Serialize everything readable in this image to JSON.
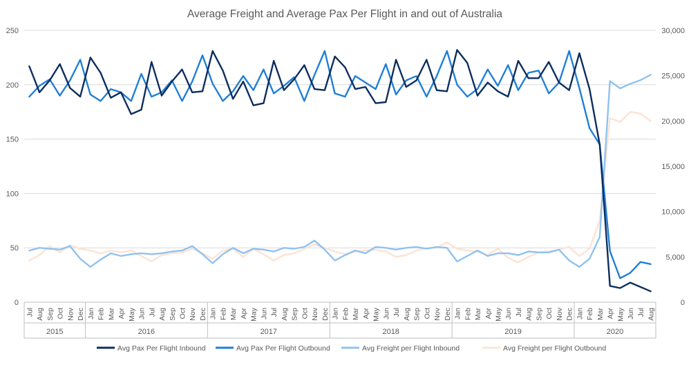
{
  "chart_data": {
    "type": "line",
    "title": "Average Freight and Average Pax Per Flight in and out of Australia",
    "xlabel": "",
    "ylabel": "",
    "y2label": "",
    "ylim": [
      0,
      250
    ],
    "y2lim": [
      0,
      30000
    ],
    "y_ticks": [
      "0",
      "50",
      "100",
      "150",
      "200",
      "250"
    ],
    "y2_ticks": [
      "0",
      "5,000",
      "10,000",
      "15,000",
      "20,000",
      "25,000",
      "30,000"
    ],
    "grid": true,
    "legend_position": "bottom",
    "years": [
      {
        "label": "2015",
        "count": 6
      },
      {
        "label": "2016",
        "count": 12
      },
      {
        "label": "2017",
        "count": 12
      },
      {
        "label": "2018",
        "count": 12
      },
      {
        "label": "2019",
        "count": 12
      },
      {
        "label": "2020",
        "count": 8
      }
    ],
    "categories": [
      "Jul",
      "Aug",
      "Sep",
      "Oct",
      "Nov",
      "Dec",
      "Jan",
      "Feb",
      "Mar",
      "Apr",
      "May",
      "Jun",
      "Jul",
      "Aug",
      "Sep",
      "Oct",
      "Nov",
      "Dec",
      "Jan",
      "Feb",
      "Mar",
      "Apr",
      "May",
      "Jun",
      "Jul",
      "Aug",
      "Sep",
      "Oct",
      "Nov",
      "Dec",
      "Jan",
      "Feb",
      "Mar",
      "Apr",
      "May",
      "Jun",
      "Jul",
      "Aug",
      "Sep",
      "Oct",
      "Nov",
      "Dec",
      "Jan",
      "Feb",
      "Mar",
      "Apr",
      "May",
      "Jun",
      "Jul",
      "Aug",
      "Sep",
      "Oct",
      "Nov",
      "Dec",
      "Jan",
      "Feb",
      "Mar",
      "Apr",
      "May",
      "Jun",
      "Jul",
      "Aug"
    ],
    "series": [
      {
        "name": "Avg Pax Per Flight Inbound",
        "axis": "left",
        "color": "#0d2d5e",
        "values": [
          217,
          193,
          204,
          219,
          197,
          189,
          225,
          211,
          188,
          193,
          173,
          177,
          221,
          190,
          203,
          214,
          193,
          194,
          231,
          213,
          187,
          203,
          181,
          183,
          222,
          195,
          205,
          218,
          196,
          195,
          226,
          216,
          196,
          198,
          183,
          184,
          223,
          198,
          204,
          223,
          195,
          194,
          232,
          220,
          190,
          202,
          194,
          189,
          222,
          206,
          206,
          221,
          202,
          195,
          229,
          196,
          145,
          15,
          13,
          18,
          14,
          10
        ]
      },
      {
        "name": "Avg Pax Per Flight Outbound",
        "axis": "left",
        "color": "#1f7fd6",
        "values": [
          189,
          199,
          205,
          190,
          204,
          223,
          191,
          185,
          196,
          193,
          185,
          210,
          189,
          193,
          204,
          185,
          203,
          227,
          201,
          185,
          194,
          208,
          195,
          214,
          192,
          199,
          207,
          185,
          209,
          231,
          192,
          189,
          208,
          202,
          196,
          219,
          191,
          204,
          208,
          189,
          208,
          231,
          200,
          189,
          196,
          214,
          199,
          218,
          195,
          211,
          213,
          192,
          202,
          231,
          197,
          160,
          145,
          47,
          22,
          27,
          37,
          35
        ]
      },
      {
        "name": "Avg Freight per Flight Inbound",
        "axis": "right",
        "color": "#8fc2f0",
        "values": [
          5700,
          6000,
          5900,
          5800,
          6200,
          4800,
          3900,
          4700,
          5400,
          5100,
          5300,
          5400,
          5300,
          5400,
          5600,
          5700,
          6200,
          5300,
          4300,
          5300,
          6000,
          5400,
          5900,
          5800,
          5600,
          6000,
          5900,
          6100,
          6800,
          5800,
          4600,
          5200,
          5700,
          5400,
          6100,
          6000,
          5800,
          6000,
          6100,
          5900,
          6100,
          6000,
          4500,
          5100,
          5700,
          5100,
          5400,
          5400,
          5200,
          5600,
          5500,
          5500,
          5800,
          4600,
          3900,
          4800,
          7200,
          24400,
          23600,
          24100,
          24500,
          25100
        ]
      },
      {
        "name": "Avg Freight per Flight Outbound",
        "axis": "right",
        "color": "#fbe5d6",
        "values": [
          4600,
          5200,
          6200,
          5500,
          6300,
          5900,
          5700,
          5400,
          5700,
          5500,
          5700,
          5100,
          4500,
          5200,
          5400,
          5500,
          5900,
          5400,
          4800,
          5700,
          5900,
          5000,
          5900,
          5300,
          4600,
          5200,
          5400,
          5900,
          6400,
          6000,
          5600,
          5300,
          5600,
          5700,
          5800,
          5600,
          5000,
          5200,
          5700,
          6000,
          6000,
          6600,
          5900,
          5700,
          5600,
          5200,
          5900,
          4900,
          4400,
          5000,
          5500,
          5600,
          5800,
          6100,
          5100,
          5900,
          9000,
          20300,
          19900,
          21000,
          20800,
          20000
        ]
      }
    ]
  }
}
